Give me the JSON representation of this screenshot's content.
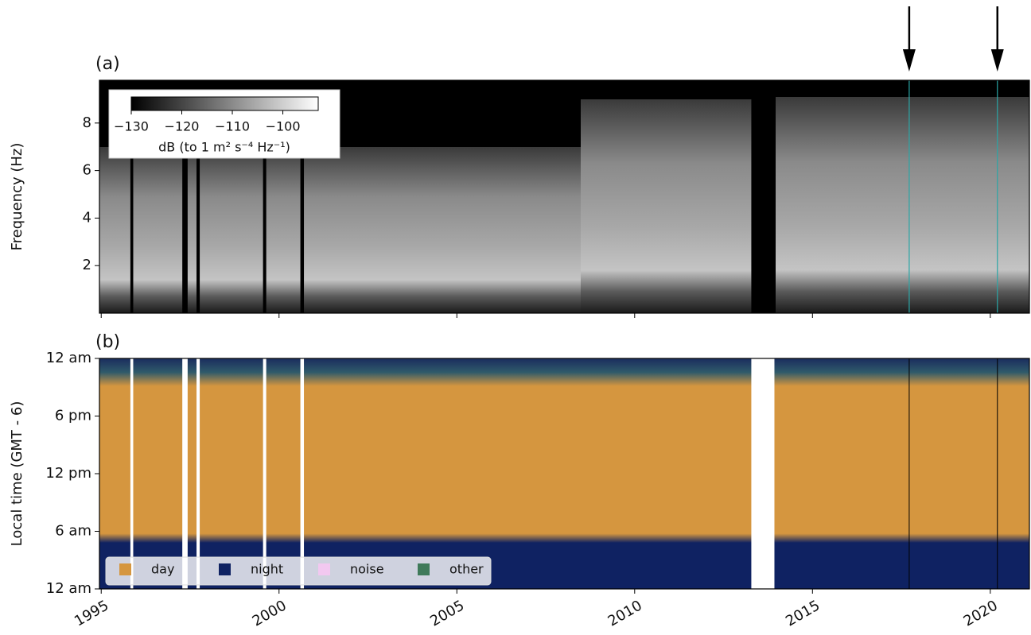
{
  "chart_data": [
    {
      "type": "spectrogram",
      "panel_label": "(a)",
      "y_label": "Frequency (Hz)",
      "xlim": [
        1994.95,
        2021.1
      ],
      "xticks": [
        1995,
        2000,
        2005,
        2010,
        2015,
        2020
      ],
      "ylim": [
        0,
        9.8
      ],
      "yticks": [
        2,
        4,
        6,
        8
      ],
      "colorbar": {
        "label": "dB (to 1 m² s⁻⁴ Hz⁻¹)",
        "clim": [
          -130,
          -93
        ],
        "ticks": [
          {
            "value": -130,
            "label": "−130"
          },
          {
            "value": -120,
            "label": "−120"
          },
          {
            "value": -110,
            "label": "−110"
          },
          {
            "value": -100,
            "label": "−100"
          }
        ]
      },
      "arrows": [
        2017.72,
        2020.2
      ],
      "arrow_color": "#2aa6a6"
    },
    {
      "type": "classification",
      "panel_label": "(b)",
      "y_label": "Local time (GMT - 6)",
      "xlim": [
        1994.95,
        2021.1
      ],
      "xticks": [
        1995,
        2000,
        2005,
        2010,
        2015,
        2020
      ],
      "ylim": [
        0,
        24
      ],
      "yticks": [
        {
          "value": 0,
          "label": "12 am"
        },
        {
          "value": 6,
          "label": "6 am"
        },
        {
          "value": 12,
          "label": "12 pm"
        },
        {
          "value": 18,
          "label": "6 pm"
        },
        {
          "value": 24,
          "label": "12 am"
        }
      ],
      "series": [
        {
          "name": "day",
          "color": "#d5963f"
        },
        {
          "name": "night",
          "color": "#0f2262"
        },
        {
          "name": "noise",
          "color": "#f2c8f0"
        },
        {
          "name": "other",
          "color": "#3f7a5a"
        }
      ],
      "gaps": [
        [
          1995.82,
          1995.9
        ],
        [
          1997.28,
          1997.43
        ],
        [
          1997.68,
          1997.77
        ],
        [
          1999.55,
          1999.64
        ],
        [
          2000.6,
          2000.7
        ],
        [
          2013.28,
          2013.93
        ]
      ]
    }
  ]
}
